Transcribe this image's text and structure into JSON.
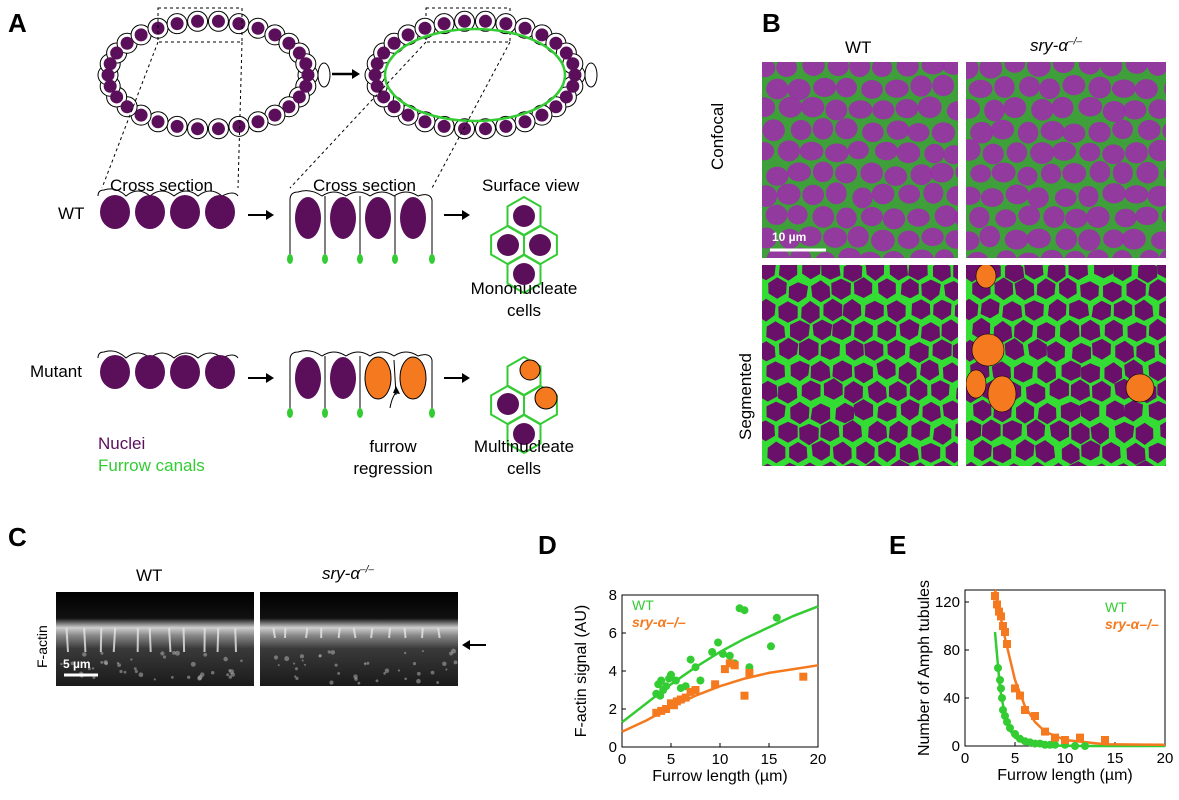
{
  "panels": {
    "a": "A",
    "b": "B",
    "c": "C",
    "d": "D",
    "e": "E"
  },
  "panel_a": {
    "cross_section_1": "Cross section",
    "cross_section_2": "Cross section",
    "surface_view": "Surface view",
    "wt_label": "WT",
    "mutant_label": "Mutant",
    "mononucleate": [
      "Mononucleate",
      "cells"
    ],
    "multinucleate": [
      "Multinucleate",
      "cells"
    ],
    "furrow_regression": [
      "furrow",
      "regression"
    ],
    "legend_nuclei": "Nuclei",
    "legend_furrow": "Furrow canals"
  },
  "panel_b": {
    "col_wt": "WT",
    "col_mut_prefix": "sry-α",
    "col_mut_sup": "–/–",
    "row_confocal": "Confocal",
    "row_segmented": "Segmented",
    "scalebar": "10 µm"
  },
  "panel_c": {
    "col_wt": "WT",
    "col_mut_prefix": "sry-α",
    "col_mut_sup": "–/–",
    "row_label": "F-actin",
    "scalebar": "5 µm"
  },
  "colors": {
    "nuclei": "#5b0f5b",
    "furrow": "#33cc33",
    "mutant": "#f57a1f",
    "cell_outline": "#000000"
  },
  "chart_data": [
    {
      "type": "scatter",
      "panel": "D",
      "xlabel": "Furrow length (µm)",
      "ylabel": "F-actin signal (AU)",
      "xlim": [
        0,
        20
      ],
      "ylim": [
        0,
        8
      ],
      "xticks": [
        0,
        5,
        10,
        15,
        20
      ],
      "yticks": [
        0,
        2,
        4,
        6,
        8
      ],
      "legend": [
        "WT",
        "sry-α–/–"
      ],
      "series": [
        {
          "name": "WT",
          "marker": "circle",
          "color": "#33cc33",
          "x": [
            3.5,
            3.7,
            3.9,
            4.0,
            4.2,
            4.5,
            4.8,
            5.0,
            5.5,
            6.0,
            6.5,
            7.0,
            7.5,
            8.0,
            9.2,
            9.8,
            10.3,
            11.0,
            11.5,
            12.0,
            12.5,
            13.0,
            15.2,
            15.8
          ],
          "y": [
            2.8,
            3.3,
            2.7,
            3.5,
            3.0,
            3.2,
            3.6,
            3.8,
            3.5,
            3.1,
            3.2,
            4.6,
            4.2,
            3.5,
            5.0,
            5.5,
            4.9,
            4.8,
            4.4,
            7.3,
            7.2,
            4.2,
            5.3,
            6.8
          ]
        },
        {
          "name": "sry-α–/–",
          "marker": "square",
          "color": "#f57a1f",
          "x": [
            3.5,
            4.0,
            4.5,
            5.0,
            5.3,
            5.6,
            6.0,
            6.5,
            7.0,
            7.5,
            9.5,
            10.5,
            11.0,
            11.5,
            12.5,
            13.0,
            18.5
          ],
          "y": [
            1.8,
            1.9,
            2.0,
            2.3,
            2.2,
            2.4,
            2.5,
            2.6,
            2.9,
            3.0,
            3.3,
            4.1,
            4.4,
            4.3,
            2.7,
            3.9,
            3.7
          ]
        }
      ],
      "fits": [
        {
          "name": "WT",
          "x": [
            0,
            2.5,
            5,
            7.5,
            10,
            12.5,
            15,
            17.5,
            20
          ],
          "y": [
            1.3,
            2.3,
            3.3,
            4.2,
            5.0,
            5.7,
            6.3,
            6.9,
            7.4
          ]
        },
        {
          "name": "sry-α–/–",
          "x": [
            0,
            2.5,
            5,
            7.5,
            10,
            12.5,
            15,
            17.5,
            20
          ],
          "y": [
            0.8,
            1.4,
            2.1,
            2.7,
            3.2,
            3.6,
            3.9,
            4.1,
            4.3
          ]
        }
      ]
    },
    {
      "type": "scatter",
      "panel": "E",
      "xlabel": "Furrow length (µm)",
      "ylabel": "Number of Amph tubules",
      "xlim": [
        0,
        20
      ],
      "ylim": [
        0,
        130
      ],
      "xticks": [
        0,
        5,
        10,
        15,
        20
      ],
      "yticks": [
        0,
        40,
        80,
        120
      ],
      "legend": [
        "WT",
        "sry-α–/–"
      ],
      "series": [
        {
          "name": "WT",
          "marker": "circle",
          "color": "#33cc33",
          "x": [
            3.3,
            3.5,
            3.6,
            3.7,
            3.8,
            4.0,
            4.2,
            4.5,
            5.0,
            5.5,
            6.0,
            6.5,
            7.0,
            7.5,
            8.0,
            8.5,
            9.0,
            10.0,
            11.0,
            12.0
          ],
          "y": [
            65,
            55,
            48,
            40,
            30,
            25,
            20,
            15,
            10,
            6,
            4,
            3,
            2,
            2,
            1,
            1,
            1,
            1,
            0,
            0
          ]
        },
        {
          "name": "sry-α–/–",
          "marker": "square",
          "color": "#f57a1f",
          "x": [
            3.0,
            3.2,
            3.4,
            3.6,
            3.8,
            4.0,
            4.2,
            5.0,
            5.5,
            6.0,
            7.0,
            8.0,
            9.0,
            10.0,
            11.5,
            14.0
          ],
          "y": [
            125,
            118,
            112,
            108,
            100,
            95,
            85,
            48,
            42,
            30,
            25,
            12,
            7,
            5,
            7,
            5
          ]
        }
      ],
      "fits": [
        {
          "name": "WT",
          "x": [
            3,
            3.5,
            4,
            4.5,
            5,
            6,
            8,
            12,
            20
          ],
          "y": [
            95,
            48,
            25,
            13,
            7,
            2,
            0.4,
            0,
            0
          ]
        },
        {
          "name": "sry-α–/–",
          "x": [
            3,
            4,
            5,
            6,
            7,
            8,
            10,
            14,
            20
          ],
          "y": [
            130,
            90,
            55,
            33,
            20,
            12,
            5,
            1.5,
            1
          ]
        }
      ]
    }
  ]
}
